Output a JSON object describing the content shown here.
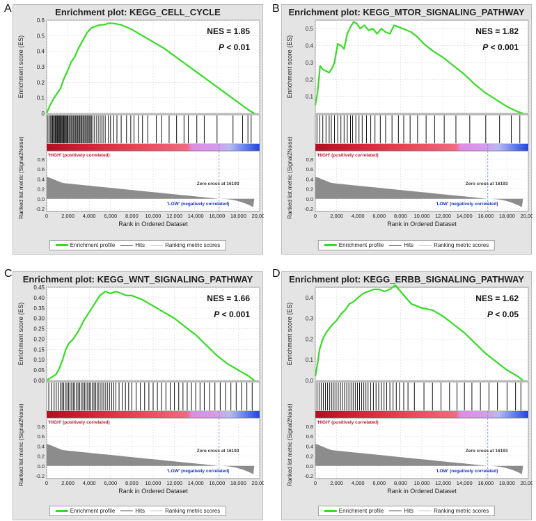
{
  "panels": [
    {
      "letter": "A",
      "title": "Enrichment plot: KEGG_CELL_CYCLE",
      "nes": "NES = 1.85",
      "p_label": "P",
      "p_value": " < 0.01",
      "zero_cross": "Zero cross at 16193",
      "high_label": "'HIGH' (positively correlated)",
      "low_label": "'LOW' (negatively correlated)",
      "xlabel": "Rank in Ordered Dataset",
      "es_ylabel": "Enrichment score (ES)",
      "metric_ylabel": "Ranked list metric (Signal2Noise)",
      "legend": [
        "Enrichment profile",
        "Hits",
        "Ranking metric scores"
      ]
    },
    {
      "letter": "B",
      "title": "Enrichment plot: KEGG_MTOR_SIGNALING_PATHWAY",
      "nes": "NES = 1.82",
      "p_label": "P",
      "p_value": " < 0.001",
      "zero_cross": "Zero cross at 16193",
      "high_label": "'HIGH' (positively correlated)",
      "low_label": "'LOW' (negatively correlated)",
      "xlabel": "Rank in Ordered Dataset",
      "es_ylabel": "Enrichment score (ES)",
      "metric_ylabel": "Ranked list metric (Signal2Noise)",
      "legend": [
        "Enrichment profile",
        "Hits",
        "Ranking metric scores"
      ]
    },
    {
      "letter": "C",
      "title": "Enrichment plot: KEGG_WNT_SIGNALING_PATHWAY",
      "nes": "NES = 1.66",
      "p_label": "P",
      "p_value": " < 0.001",
      "zero_cross": "Zero cross at 16193",
      "high_label": "'HIGH' (positively correlated)",
      "low_label": "'LOW' (negatively correlated)",
      "xlabel": "Rank in Ordered Dataset",
      "es_ylabel": "Enrichment score (ES)",
      "metric_ylabel": "Ranked list metric (Signal2Noise)",
      "legend": [
        "Enrichment profile",
        "Hits",
        "Ranking metric scores"
      ]
    },
    {
      "letter": "D",
      "title": "Enrichment plot: KEGG_ERBB_SIGNALING_PATHWAY",
      "nes": "NES = 1.62",
      "p_label": "P",
      "p_value": " < 0.05",
      "zero_cross": "Zero cross at 16193",
      "high_label": "'HIGH' (positively correlated)",
      "low_label": "'LOW' (negatively correlated)",
      "xlabel": "Rank in Ordered Dataset",
      "es_ylabel": "Enrichment score (ES)",
      "metric_ylabel": "Ranked list metric (Signal2Noise)",
      "legend": [
        "Enrichment profile",
        "Hits",
        "Ranking metric scores"
      ]
    }
  ],
  "colors": {
    "es_line": "#33dd22",
    "hits": "#111111",
    "metric_fill": "#8c8c8c",
    "high_text": "#cc1133",
    "low_text": "#1133cc",
    "panel_bg": "#e4e4e4"
  },
  "chart_data": [
    {
      "type": "line",
      "title": "Enrichment plot: KEGG_CELL_CYCLE",
      "xlabel": "Rank in Ordered Dataset",
      "ylabel": "Enrichment score (ES)",
      "xlim": [
        0,
        20000
      ],
      "ylim": [
        0,
        0.6
      ],
      "xticks": [
        0,
        2000,
        4000,
        6000,
        8000,
        10000,
        12000,
        14000,
        16000,
        18000,
        20000
      ],
      "xtick_labels": [
        "0",
        "2,000",
        "4,000",
        "6,000",
        "8,000",
        "10,000",
        "12,000",
        "14,000",
        "16,000",
        "18,000",
        "20,000"
      ],
      "yticks": [
        0,
        0.1,
        0.2,
        0.3,
        0.4,
        0.5,
        0.6
      ],
      "ytick_labels": [
        "0",
        "0.1",
        "0.2",
        "0.3",
        "0.4",
        "0.5",
        "0.6"
      ],
      "metric_ylim": [
        -0.2,
        0.8
      ],
      "metric_yticks": [
        0.8,
        0.6,
        0.4,
        0.2,
        0.0,
        -0.2
      ],
      "metric_ytick_labels": [
        "0.8",
        "0.6",
        "0.4",
        "0.2",
        "0.0",
        "-0.2"
      ],
      "zero_cross": 16193,
      "grid": true,
      "legend": "bottom",
      "series": [
        {
          "name": "Enrichment profile",
          "x": [
            0,
            300,
            700,
            1000,
            1300,
            1600,
            2000,
            2300,
            2600,
            3000,
            3400,
            3800,
            4200,
            4600,
            5000,
            5400,
            5800,
            6200,
            6600,
            7000,
            8000,
            9000,
            10000,
            11000,
            12000,
            13000,
            14000,
            15000,
            16000,
            17000,
            18000,
            19000,
            19500
          ],
          "y": [
            0.0,
            0.05,
            0.1,
            0.13,
            0.16,
            0.22,
            0.28,
            0.33,
            0.36,
            0.42,
            0.47,
            0.52,
            0.55,
            0.56,
            0.57,
            0.57,
            0.58,
            0.58,
            0.575,
            0.57,
            0.54,
            0.5,
            0.46,
            0.42,
            0.37,
            0.32,
            0.27,
            0.22,
            0.17,
            0.12,
            0.07,
            0.02,
            0.0
          ]
        }
      ],
      "hits": [
        120,
        260,
        380,
        470,
        560,
        640,
        730,
        820,
        900,
        980,
        1050,
        1130,
        1200,
        1280,
        1360,
        1440,
        1520,
        1600,
        1680,
        1760,
        1840,
        1920,
        2000,
        2100,
        2200,
        2300,
        2400,
        2500,
        2600,
        2700,
        2800,
        2900,
        3000,
        3100,
        3200,
        3300,
        3400,
        3500,
        3600,
        3700,
        3800,
        3900,
        4000,
        4100,
        4200,
        4350,
        4500,
        4700,
        4900,
        5100,
        5300,
        5500,
        5800,
        6000,
        6300,
        6600,
        7000,
        7500,
        7900,
        8200,
        8600,
        9000,
        9500,
        10300,
        10800,
        11500,
        12200,
        12900,
        13300,
        14100,
        14800,
        16000,
        17500,
        18400,
        18900,
        19200
      ]
    },
    {
      "type": "line",
      "title": "Enrichment plot: KEGG_MTOR_SIGNALING_PATHWAY",
      "xlabel": "Rank in Ordered Dataset",
      "ylabel": "Enrichment score (ES)",
      "xlim": [
        0,
        20000
      ],
      "ylim": [
        0,
        0.55
      ],
      "xticks": [
        0,
        2000,
        4000,
        6000,
        8000,
        10000,
        12000,
        14000,
        16000,
        18000,
        20000
      ],
      "xtick_labels": [
        "0",
        "2,000",
        "4,000",
        "6,000",
        "8,000",
        "10,000",
        "12,000",
        "14,000",
        "16,000",
        "18,000",
        "20,000"
      ],
      "yticks": [
        0.1,
        0.2,
        0.3,
        0.4,
        0.5
      ],
      "ytick_labels": [
        "0.1",
        "0.2",
        "0.3",
        "0.4",
        "0.5"
      ],
      "metric_ylim": [
        -0.2,
        0.8
      ],
      "metric_yticks": [
        0.8,
        0.6,
        0.4,
        0.2,
        0.0,
        -0.2
      ],
      "metric_ytick_labels": [
        "0.8",
        "0.6",
        "0.4",
        "0.2",
        "0.0",
        "-0.2"
      ],
      "zero_cross": 16193,
      "grid": true,
      "legend": "bottom",
      "series": [
        {
          "name": "Enrichment profile",
          "x": [
            0,
            200,
            450,
            700,
            1000,
            1300,
            1600,
            1800,
            2100,
            2400,
            2700,
            3000,
            3300,
            3600,
            3900,
            4200,
            4600,
            5000,
            5400,
            5800,
            6200,
            6600,
            7000,
            7400,
            7800,
            8200,
            8600,
            9000,
            9600,
            10200,
            11000,
            12000,
            13000,
            14000,
            15000,
            16000,
            17000,
            18000,
            19000,
            19500
          ],
          "y": [
            0.05,
            0.12,
            0.28,
            0.26,
            0.25,
            0.24,
            0.27,
            0.3,
            0.41,
            0.4,
            0.38,
            0.47,
            0.51,
            0.54,
            0.53,
            0.5,
            0.52,
            0.49,
            0.5,
            0.47,
            0.5,
            0.48,
            0.47,
            0.52,
            0.51,
            0.5,
            0.49,
            0.48,
            0.45,
            0.41,
            0.37,
            0.33,
            0.28,
            0.23,
            0.17,
            0.12,
            0.08,
            0.04,
            0.01,
            0.0
          ]
        }
      ],
      "hits": [
        150,
        420,
        700,
        1000,
        1300,
        1500,
        1800,
        2100,
        2400,
        2700,
        3000,
        3300,
        3500,
        3800,
        4100,
        4400,
        4800,
        5200,
        5600,
        6100,
        6600,
        7200,
        7800,
        8300,
        8900,
        9600,
        10400,
        11200,
        12100,
        13200,
        14500,
        16000,
        17300,
        18400,
        19200
      ]
    },
    {
      "type": "line",
      "title": "Enrichment plot: KEGG_WNT_SIGNALING_PATHWAY",
      "xlabel": "Rank in Ordered Dataset",
      "ylabel": "Enrichment score (ES)",
      "xlim": [
        0,
        20000
      ],
      "ylim": [
        0,
        0.45
      ],
      "xticks": [
        0,
        2000,
        4000,
        6000,
        8000,
        10000,
        12000,
        14000,
        16000,
        18000,
        20000
      ],
      "xtick_labels": [
        "0",
        "2,000",
        "4,000",
        "6,000",
        "8,000",
        "10,000",
        "12,000",
        "14,000",
        "16,000",
        "18,000",
        "20,000"
      ],
      "yticks": [
        0,
        0.05,
        0.1,
        0.15,
        0.2,
        0.25,
        0.3,
        0.35,
        0.4,
        0.45
      ],
      "ytick_labels": [
        "0.00",
        "0.05",
        "0.10",
        "0.15",
        "0.20",
        "0.25",
        "0.30",
        "0.35",
        "0.40",
        "0.45"
      ],
      "metric_ylim": [
        -0.2,
        0.8
      ],
      "metric_yticks": [
        0.8,
        0.6,
        0.4,
        0.2,
        0.0,
        -0.2
      ],
      "metric_ytick_labels": [
        "0.8",
        "0.6",
        "0.4",
        "0.2",
        "0.0",
        "-0.2"
      ],
      "zero_cross": 16193,
      "grid": true,
      "legend": "bottom",
      "series": [
        {
          "name": "Enrichment profile",
          "x": [
            0,
            300,
            600,
            900,
            1200,
            1500,
            1800,
            2100,
            2500,
            3000,
            3500,
            4000,
            4500,
            5000,
            5500,
            6000,
            6500,
            7000,
            7500,
            8000,
            9000,
            10000,
            11000,
            12000,
            13000,
            14000,
            15000,
            16000,
            17000,
            18000,
            19000,
            19500
          ],
          "y": [
            0.0,
            0.01,
            0.02,
            0.03,
            0.06,
            0.1,
            0.15,
            0.18,
            0.2,
            0.24,
            0.29,
            0.33,
            0.37,
            0.41,
            0.43,
            0.42,
            0.43,
            0.42,
            0.41,
            0.41,
            0.39,
            0.36,
            0.33,
            0.3,
            0.26,
            0.22,
            0.17,
            0.12,
            0.08,
            0.05,
            0.02,
            0.0
          ]
        }
      ],
      "hits": [
        200,
        450,
        700,
        900,
        1100,
        1300,
        1450,
        1600,
        1750,
        1900,
        2050,
        2200,
        2350,
        2500,
        2650,
        2800,
        2950,
        3100,
        3250,
        3400,
        3550,
        3700,
        3850,
        4000,
        4150,
        4300,
        4450,
        4600,
        4750,
        4900,
        5100,
        5300,
        5500,
        5700,
        5900,
        6100,
        6300,
        6500,
        6800,
        7100,
        7400,
        7700,
        8000,
        8400,
        8800,
        9200,
        9600,
        10000,
        10400,
        10800,
        11200,
        11600,
        12000,
        12400,
        12800,
        13200,
        13600,
        14000,
        14400,
        14800,
        15300,
        15800,
        16300,
        16800,
        17300,
        17800,
        18300,
        18800,
        19300
      ]
    },
    {
      "type": "line",
      "title": "Enrichment plot: KEGG_ERBB_SIGNALING_PATHWAY",
      "xlabel": "Rank in Ordered Dataset",
      "ylabel": "Enrichment score (ES)",
      "xlim": [
        0,
        20000
      ],
      "ylim": [
        0,
        0.45
      ],
      "xticks": [
        0,
        2000,
        4000,
        6000,
        8000,
        10000,
        12000,
        14000,
        16000,
        18000,
        20000
      ],
      "xtick_labels": [
        "0",
        "2,000",
        "4,000",
        "6,000",
        "8,000",
        "10,000",
        "12,000",
        "14,000",
        "16,000",
        "18,000",
        "20,000"
      ],
      "yticks": [
        0,
        0.1,
        0.2,
        0.3,
        0.4
      ],
      "ytick_labels": [
        "0.0",
        "0.1",
        "0.2",
        "0.3",
        "0.4"
      ],
      "metric_ylim": [
        -0.2,
        0.8
      ],
      "metric_yticks": [
        0.8,
        0.6,
        0.4,
        0.2,
        0.0,
        -0.2
      ],
      "metric_ytick_labels": [
        "0.8",
        "0.6",
        "0.4",
        "0.2",
        "0.0",
        "-0.2"
      ],
      "zero_cross": 16193,
      "grid": true,
      "legend": "bottom",
      "series": [
        {
          "name": "Enrichment profile",
          "x": [
            0,
            200,
            400,
            700,
            1000,
            1300,
            1600,
            2000,
            2400,
            2800,
            3200,
            3600,
            4000,
            4500,
            5000,
            5500,
            6000,
            6500,
            7000,
            7500,
            8000,
            8500,
            9000,
            10000,
            11000,
            12000,
            13000,
            14000,
            15000,
            16000,
            17000,
            18000,
            19000,
            19500
          ],
          "y": [
            0.02,
            0.08,
            0.15,
            0.2,
            0.23,
            0.25,
            0.27,
            0.29,
            0.32,
            0.34,
            0.37,
            0.38,
            0.4,
            0.42,
            0.43,
            0.44,
            0.44,
            0.43,
            0.44,
            0.46,
            0.43,
            0.4,
            0.37,
            0.35,
            0.34,
            0.31,
            0.27,
            0.23,
            0.18,
            0.13,
            0.09,
            0.05,
            0.02,
            0.0
          ]
        }
      ],
      "hits": [
        150,
        350,
        550,
        750,
        950,
        1150,
        1350,
        1550,
        1750,
        1950,
        2150,
        2350,
        2550,
        2750,
        2950,
        3150,
        3350,
        3550,
        3750,
        3950,
        4150,
        4350,
        4550,
        4750,
        4950,
        5200,
        5450,
        5700,
        5950,
        6200,
        6450,
        6700,
        7000,
        7300,
        7600,
        7900,
        8300,
        8700,
        9300,
        10200,
        11000,
        11800,
        12600,
        13300,
        14000,
        14700,
        15500,
        16300,
        17100,
        18000,
        18800,
        19300
      ]
    }
  ]
}
